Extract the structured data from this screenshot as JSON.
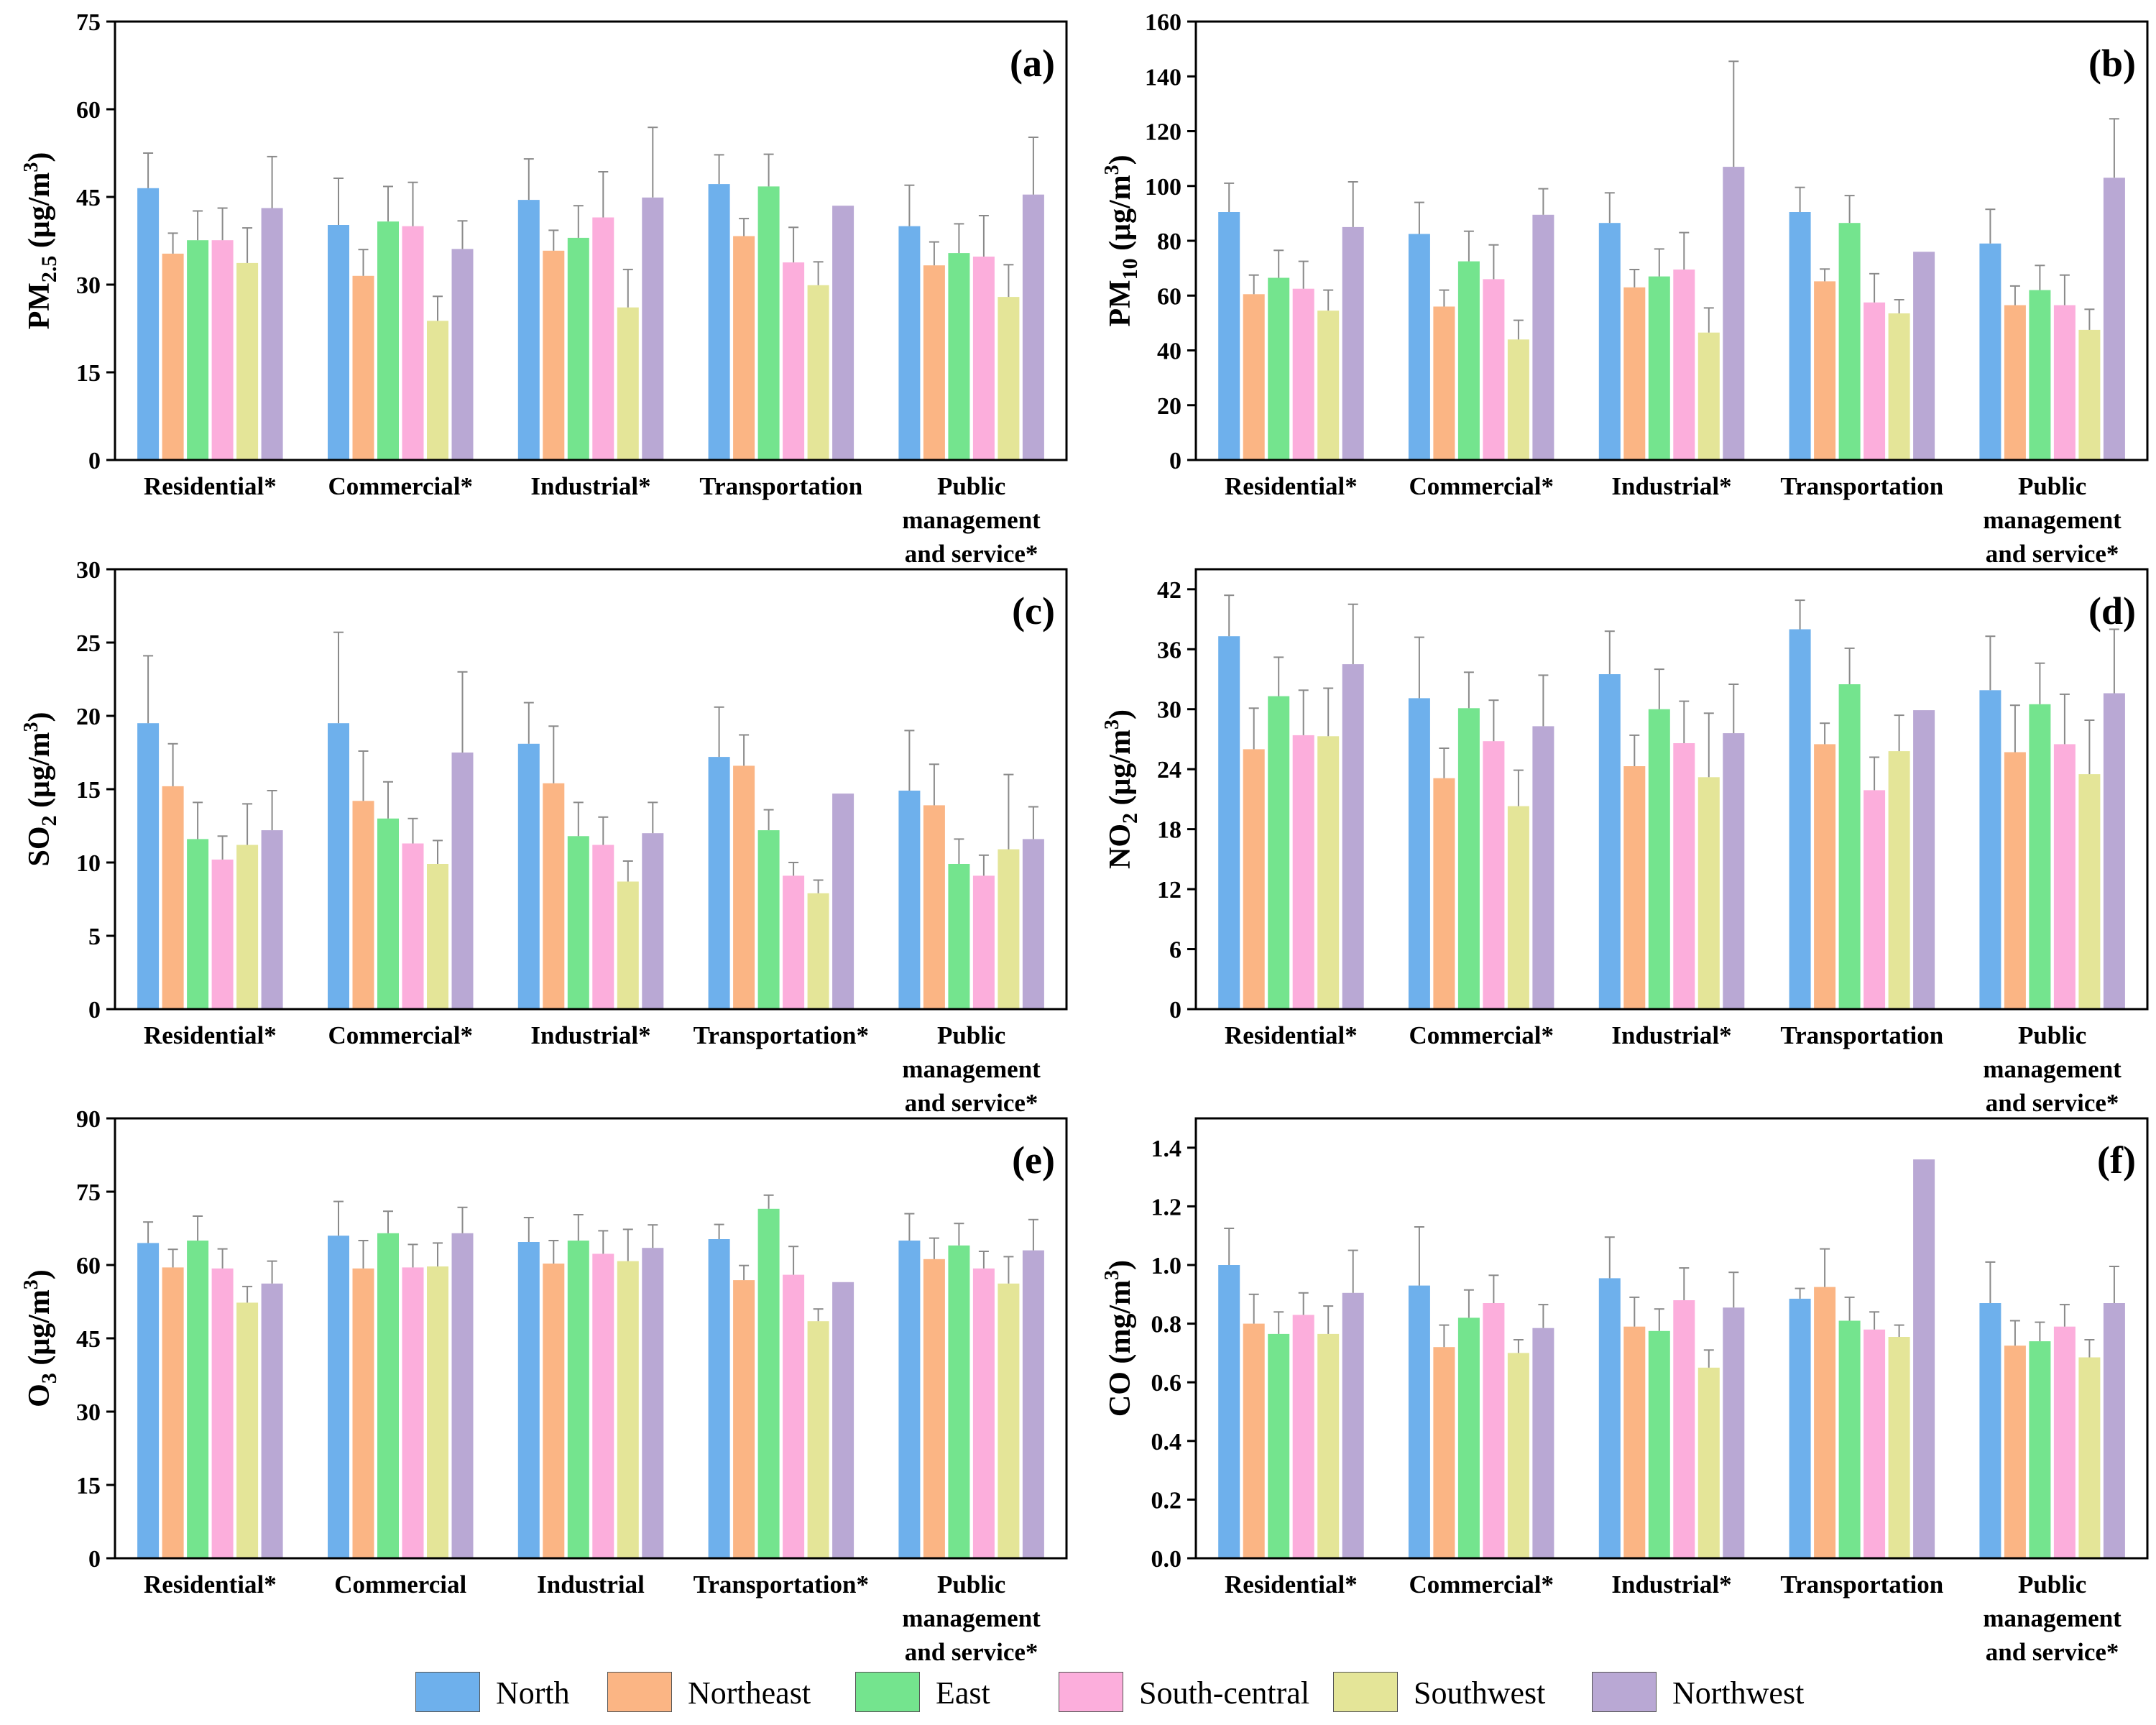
{
  "legend_position": "bottom",
  "series_colors": {
    "North": "#6EB0EC",
    "Northeast": "#FBB584",
    "East": "#74E48E",
    "South-central": "#FCAEDC",
    "Southwest": "#E4E598",
    "Northwest": "#B9A8D4"
  },
  "legend": [
    "North",
    "Northeast",
    "East",
    "South-central",
    "Southwest",
    "Northwest"
  ],
  "chart_data": [
    {
      "type": "bar",
      "panel_label": "(a)",
      "ylabel_main": "PM",
      "ylabel_sub": "2.5",
      "ylabel_unit_pre": " (μg/m",
      "ylabel_unit_sup": "3",
      "ylabel_unit_post": ")",
      "ylim": [
        0,
        75
      ],
      "yticks": [
        0,
        15,
        30,
        45,
        60,
        75
      ],
      "ytick_labels": [
        "0",
        "15",
        "30",
        "45",
        "60",
        "75"
      ],
      "categories": [
        [
          "Residential*"
        ],
        [
          "Commercial*"
        ],
        [
          "Industrial*"
        ],
        [
          "Transportation"
        ],
        [
          "Public",
          "management",
          "and service*"
        ]
      ],
      "series": [
        {
          "name": "North",
          "values": [
            46.5,
            40.2,
            44.5,
            47.2,
            40.0
          ],
          "errors": [
            6.0,
            8.0,
            7.0,
            5.0,
            7.0
          ]
        },
        {
          "name": "Northeast",
          "values": [
            35.3,
            31.5,
            35.8,
            38.3,
            33.3
          ],
          "errors": [
            3.5,
            4.5,
            3.5,
            3.0,
            4.0
          ]
        },
        {
          "name": "East",
          "values": [
            37.6,
            40.8,
            38.0,
            46.8,
            35.4
          ],
          "errors": [
            5.0,
            6.0,
            5.5,
            5.5,
            5.0
          ]
        },
        {
          "name": "South-central",
          "values": [
            37.6,
            40.0,
            41.5,
            33.8,
            34.8
          ],
          "errors": [
            5.5,
            7.5,
            7.8,
            6.0,
            7.0
          ]
        },
        {
          "name": "Southwest",
          "values": [
            33.7,
            23.8,
            26.1,
            29.9,
            27.9
          ],
          "errors": [
            6.0,
            4.2,
            6.5,
            4.0,
            5.5
          ]
        },
        {
          "name": "Northwest",
          "values": [
            43.1,
            36.1,
            44.9,
            43.5,
            45.4
          ],
          "errors": [
            8.8,
            4.8,
            12.0,
            0.0,
            9.8
          ]
        }
      ]
    },
    {
      "type": "bar",
      "panel_label": "(b)",
      "ylabel_main": "PM",
      "ylabel_sub": "10",
      "ylabel_unit_pre": " (μg/m",
      "ylabel_unit_sup": "3",
      "ylabel_unit_post": ")",
      "ylim": [
        0,
        160
      ],
      "yticks": [
        0,
        20,
        40,
        60,
        80,
        100,
        120,
        140,
        160
      ],
      "ytick_labels": [
        "0",
        "20",
        "40",
        "60",
        "80",
        "100",
        "120",
        "140",
        "160"
      ],
      "categories": [
        [
          "Residential*"
        ],
        [
          "Commercial*"
        ],
        [
          "Industrial*"
        ],
        [
          "Transportation"
        ],
        [
          "Public",
          "management",
          "and service*"
        ]
      ],
      "series": [
        {
          "name": "North",
          "values": [
            90.5,
            82.5,
            86.5,
            90.5,
            79.0
          ],
          "errors": [
            10.5,
            11.5,
            11.0,
            9.0,
            12.5
          ]
        },
        {
          "name": "Northeast",
          "values": [
            60.5,
            56.0,
            63.0,
            65.2,
            56.5
          ],
          "errors": [
            7.0,
            6.0,
            6.5,
            4.5,
            7.0
          ]
        },
        {
          "name": "East",
          "values": [
            66.5,
            72.5,
            67.0,
            86.5,
            62.0
          ],
          "errors": [
            10.0,
            11.0,
            10.0,
            10.0,
            9.0
          ]
        },
        {
          "name": "South-central",
          "values": [
            62.5,
            66.0,
            69.5,
            57.5,
            56.5
          ],
          "errors": [
            10.0,
            12.5,
            13.5,
            10.5,
            11.0
          ]
        },
        {
          "name": "Southwest",
          "values": [
            54.5,
            44.0,
            46.5,
            53.5,
            47.5
          ],
          "errors": [
            7.5,
            7.0,
            9.0,
            5.0,
            7.5
          ]
        },
        {
          "name": "Northwest",
          "values": [
            85.0,
            89.5,
            107.0,
            76.0,
            103.0
          ],
          "errors": [
            16.5,
            9.5,
            38.5,
            0.0,
            21.5
          ]
        }
      ]
    },
    {
      "type": "bar",
      "panel_label": "(c)",
      "ylabel_main": "SO",
      "ylabel_sub": "2",
      "ylabel_unit_pre": " (μg/m",
      "ylabel_unit_sup": "3",
      "ylabel_unit_post": ")",
      "ylim": [
        0,
        30
      ],
      "yticks": [
        0,
        5,
        10,
        15,
        20,
        25,
        30
      ],
      "ytick_labels": [
        "0",
        "5",
        "10",
        "15",
        "20",
        "25",
        "30"
      ],
      "categories": [
        [
          "Residential*"
        ],
        [
          "Commercial*"
        ],
        [
          "Industrial*"
        ],
        [
          "Transportation*"
        ],
        [
          "Public",
          "management",
          "and service*"
        ]
      ],
      "series": [
        {
          "name": "North",
          "values": [
            19.5,
            19.5,
            18.1,
            17.2,
            14.9
          ],
          "errors": [
            4.6,
            6.2,
            2.8,
            3.4,
            4.1
          ]
        },
        {
          "name": "Northeast",
          "values": [
            15.2,
            14.2,
            15.4,
            16.6,
            13.9
          ],
          "errors": [
            2.9,
            3.4,
            3.9,
            2.1,
            2.8
          ]
        },
        {
          "name": "East",
          "values": [
            11.6,
            13.0,
            11.8,
            12.2,
            9.9
          ],
          "errors": [
            2.5,
            2.5,
            2.3,
            1.4,
            1.7
          ]
        },
        {
          "name": "South-central",
          "values": [
            10.2,
            11.3,
            11.2,
            9.1,
            9.1
          ],
          "errors": [
            1.6,
            1.7,
            1.9,
            0.9,
            1.4
          ]
        },
        {
          "name": "Southwest",
          "values": [
            11.2,
            9.9,
            8.7,
            7.9,
            10.9
          ],
          "errors": [
            2.8,
            1.6,
            1.4,
            0.9,
            5.1
          ]
        },
        {
          "name": "Northwest",
          "values": [
            12.2,
            17.5,
            12.0,
            14.7,
            11.6
          ],
          "errors": [
            2.7,
            5.5,
            2.1,
            0.0,
            2.2
          ]
        }
      ]
    },
    {
      "type": "bar",
      "panel_label": "(d)",
      "ylabel_main": "NO",
      "ylabel_sub": "2",
      "ylabel_unit_pre": " (μg/m",
      "ylabel_unit_sup": "3",
      "ylabel_unit_post": ")",
      "ylim": [
        0,
        44
      ],
      "yticks": [
        0,
        6,
        12,
        18,
        24,
        30,
        36,
        42
      ],
      "ytick_labels": [
        "0",
        "6",
        "12",
        "18",
        "24",
        "30",
        "36",
        "42"
      ],
      "categories": [
        [
          "Residential*"
        ],
        [
          "Commercial*"
        ],
        [
          "Industrial*"
        ],
        [
          "Transportation"
        ],
        [
          "Public",
          "management",
          "and service*"
        ]
      ],
      "series": [
        {
          "name": "North",
          "values": [
            37.3,
            31.1,
            33.5,
            38.0,
            31.9
          ],
          "errors": [
            4.1,
            6.1,
            4.3,
            2.9,
            5.4
          ]
        },
        {
          "name": "Northeast",
          "values": [
            26.0,
            23.1,
            24.3,
            26.5,
            25.7
          ],
          "errors": [
            4.1,
            3.0,
            3.1,
            2.1,
            4.7
          ]
        },
        {
          "name": "East",
          "values": [
            31.3,
            30.1,
            30.0,
            32.5,
            30.5
          ],
          "errors": [
            3.9,
            3.6,
            4.0,
            3.6,
            4.1
          ]
        },
        {
          "name": "South-central",
          "values": [
            27.4,
            26.8,
            26.6,
            21.9,
            26.5
          ],
          "errors": [
            4.5,
            4.1,
            4.2,
            3.3,
            5.0
          ]
        },
        {
          "name": "Southwest",
          "values": [
            27.3,
            20.3,
            23.2,
            25.8,
            23.5
          ],
          "errors": [
            4.8,
            3.6,
            6.4,
            3.6,
            5.4
          ]
        },
        {
          "name": "Northwest",
          "values": [
            34.5,
            28.3,
            27.6,
            29.9,
            31.6
          ],
          "errors": [
            6.0,
            5.1,
            4.9,
            0.0,
            6.4
          ]
        }
      ]
    },
    {
      "type": "bar",
      "panel_label": "(e)",
      "ylabel_main": "O",
      "ylabel_sub": "3",
      "ylabel_unit_pre": " (μg/m",
      "ylabel_unit_sup": "3",
      "ylabel_unit_post": ")",
      "ylim": [
        0,
        90
      ],
      "yticks": [
        0,
        15,
        30,
        45,
        60,
        75,
        90
      ],
      "ytick_labels": [
        "0",
        "15",
        "30",
        "45",
        "60",
        "75",
        "90"
      ],
      "categories": [
        [
          "Residential*"
        ],
        [
          "Commercial"
        ],
        [
          "Industrial"
        ],
        [
          "Transportation*"
        ],
        [
          "Public",
          "management",
          "and service*"
        ]
      ],
      "series": [
        {
          "name": "North",
          "values": [
            64.5,
            66.0,
            64.7,
            65.3,
            65.0
          ],
          "errors": [
            4.3,
            7.0,
            5.0,
            3.0,
            5.5
          ]
        },
        {
          "name": "Northeast",
          "values": [
            59.5,
            59.3,
            60.3,
            56.9,
            61.2
          ],
          "errors": [
            3.7,
            5.7,
            4.7,
            3.0,
            4.3
          ]
        },
        {
          "name": "East",
          "values": [
            65.0,
            66.5,
            65.0,
            71.5,
            64.0
          ],
          "errors": [
            5.0,
            4.5,
            5.3,
            2.8,
            4.5
          ]
        },
        {
          "name": "South-central",
          "values": [
            59.3,
            59.5,
            62.3,
            58.0,
            59.3
          ],
          "errors": [
            4.0,
            4.7,
            4.7,
            5.8,
            3.5
          ]
        },
        {
          "name": "Southwest",
          "values": [
            52.3,
            59.7,
            60.8,
            48.5,
            56.2
          ],
          "errors": [
            3.3,
            4.8,
            6.5,
            2.5,
            5.5
          ]
        },
        {
          "name": "Northwest",
          "values": [
            56.2,
            66.5,
            63.5,
            56.5,
            63.0
          ],
          "errors": [
            4.6,
            5.3,
            4.7,
            0.0,
            6.3
          ]
        }
      ]
    },
    {
      "type": "bar",
      "panel_label": "(f)",
      "ylabel_main": "CO",
      "ylabel_sub": "",
      "ylabel_unit_pre": " (mg/m",
      "ylabel_unit_sup": "3",
      "ylabel_unit_post": ")",
      "ylim": [
        0,
        1.5
      ],
      "yticks": [
        0,
        0.2,
        0.4,
        0.6,
        0.8,
        1.0,
        1.2,
        1.4
      ],
      "ytick_labels": [
        "0.0",
        "0.2",
        "0.4",
        "0.6",
        "0.8",
        "1.0",
        "1.2",
        "1.4"
      ],
      "categories": [
        [
          "Residential*"
        ],
        [
          "Commercial*"
        ],
        [
          "Industrial*"
        ],
        [
          "Transportation"
        ],
        [
          "Public",
          "management",
          "and service*"
        ]
      ],
      "series": [
        {
          "name": "North",
          "values": [
            1.0,
            0.93,
            0.955,
            0.885,
            0.87
          ],
          "errors": [
            0.125,
            0.2,
            0.14,
            0.035,
            0.14
          ]
        },
        {
          "name": "Northeast",
          "values": [
            0.8,
            0.72,
            0.79,
            0.925,
            0.725
          ],
          "errors": [
            0.1,
            0.075,
            0.1,
            0.13,
            0.085
          ]
        },
        {
          "name": "East",
          "values": [
            0.765,
            0.82,
            0.775,
            0.81,
            0.74
          ],
          "errors": [
            0.075,
            0.095,
            0.075,
            0.08,
            0.065
          ]
        },
        {
          "name": "South-central",
          "values": [
            0.83,
            0.87,
            0.88,
            0.78,
            0.79
          ],
          "errors": [
            0.075,
            0.095,
            0.11,
            0.06,
            0.075
          ]
        },
        {
          "name": "Southwest",
          "values": [
            0.765,
            0.7,
            0.65,
            0.755,
            0.685
          ],
          "errors": [
            0.095,
            0.045,
            0.06,
            0.04,
            0.06
          ]
        },
        {
          "name": "Northwest",
          "values": [
            0.905,
            0.785,
            0.855,
            1.36,
            0.87
          ],
          "errors": [
            0.145,
            0.08,
            0.12,
            0.0,
            0.125
          ]
        }
      ]
    }
  ]
}
